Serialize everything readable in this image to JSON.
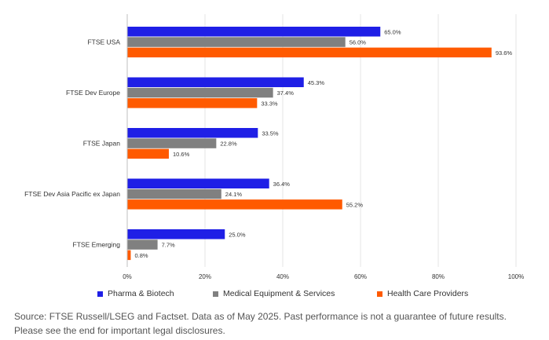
{
  "chart_data": {
    "type": "bar",
    "orientation": "horizontal",
    "categories": [
      "FTSE USA",
      "FTSE Dev Europe",
      "FTSE Japan",
      "FTSE Dev Asia Pacific ex Japan",
      "FTSE Emerging"
    ],
    "series": [
      {
        "name": "Pharma & Biotech",
        "color": "#1f1fe6",
        "values": [
          65.0,
          45.3,
          33.5,
          36.4,
          25.0
        ],
        "labels": [
          "65.0%",
          "45.3%",
          "33.5%",
          "36.4%",
          "25.0%"
        ]
      },
      {
        "name": "Medical Equipment & Services",
        "color": "#808080",
        "values": [
          56.0,
          37.4,
          22.8,
          24.1,
          7.7
        ],
        "labels": [
          "56.0%",
          "37.4%",
          "22.8%",
          "24.1%",
          "7.7%"
        ]
      },
      {
        "name": "Health Care Providers",
        "color": "#ff5a00",
        "values": [
          93.6,
          33.3,
          10.6,
          55.2,
          0.8
        ],
        "labels": [
          "93.6%",
          "33.3%",
          "10.6%",
          "55.2%",
          "0.8%"
        ]
      }
    ],
    "x_ticks": [
      0,
      20,
      40,
      60,
      80,
      100
    ],
    "x_tick_labels": [
      "0%",
      "20%",
      "40%",
      "60%",
      "80%",
      "100%"
    ],
    "xlim": [
      0,
      100
    ],
    "grid": true,
    "legend_position": "bottom"
  },
  "footer": {
    "source_line1": "Source: FTSE Russell/LSEG and Factset. Data as of May 2025. Past performance is not a guarantee of future results.",
    "source_line2": "Please see the end for important legal disclosures."
  }
}
